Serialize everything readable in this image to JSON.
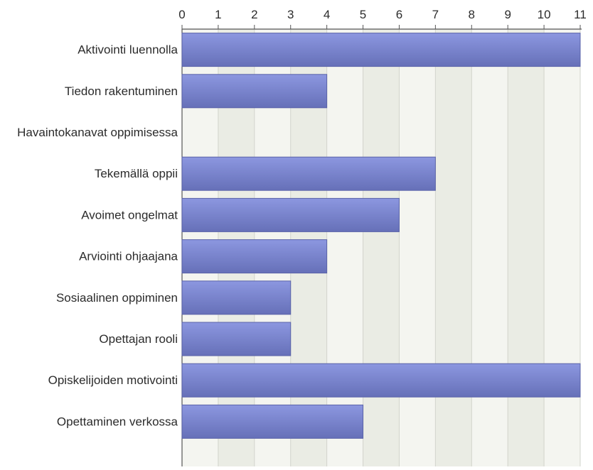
{
  "chart_data": {
    "type": "bar",
    "orientation": "horizontal",
    "categories": [
      "Aktivointi luennolla",
      "Tiedon rakentuminen",
      "Havaintokanavat oppimisessa",
      "Tekemällä oppii",
      "Avoimet ongelmat",
      "Arviointi ohjaajana",
      "Sosiaalinen oppiminen",
      "Opettajan rooli",
      "Opiskelijoiden motivointi",
      "Opettaminen verkossa"
    ],
    "values": [
      11,
      4,
      0,
      7,
      6,
      4,
      3,
      3,
      11,
      5
    ],
    "xlim": [
      0,
      11
    ],
    "xticks": [
      "0",
      "1",
      "2",
      "3",
      "4",
      "5",
      "6",
      "7",
      "8",
      "9",
      "10",
      "11"
    ],
    "x_axis_position": "top",
    "grid": true,
    "title": "",
    "xlabel": "",
    "ylabel": "",
    "colors": {
      "bar_top": "#8c97e0",
      "bar_bottom": "#6670b8",
      "bar_edge": "#5a63a8",
      "band_light": "#f4f5f0",
      "band_dark": "#eaece4",
      "gridline": "#d2d4cc",
      "axis": "#555555"
    }
  }
}
